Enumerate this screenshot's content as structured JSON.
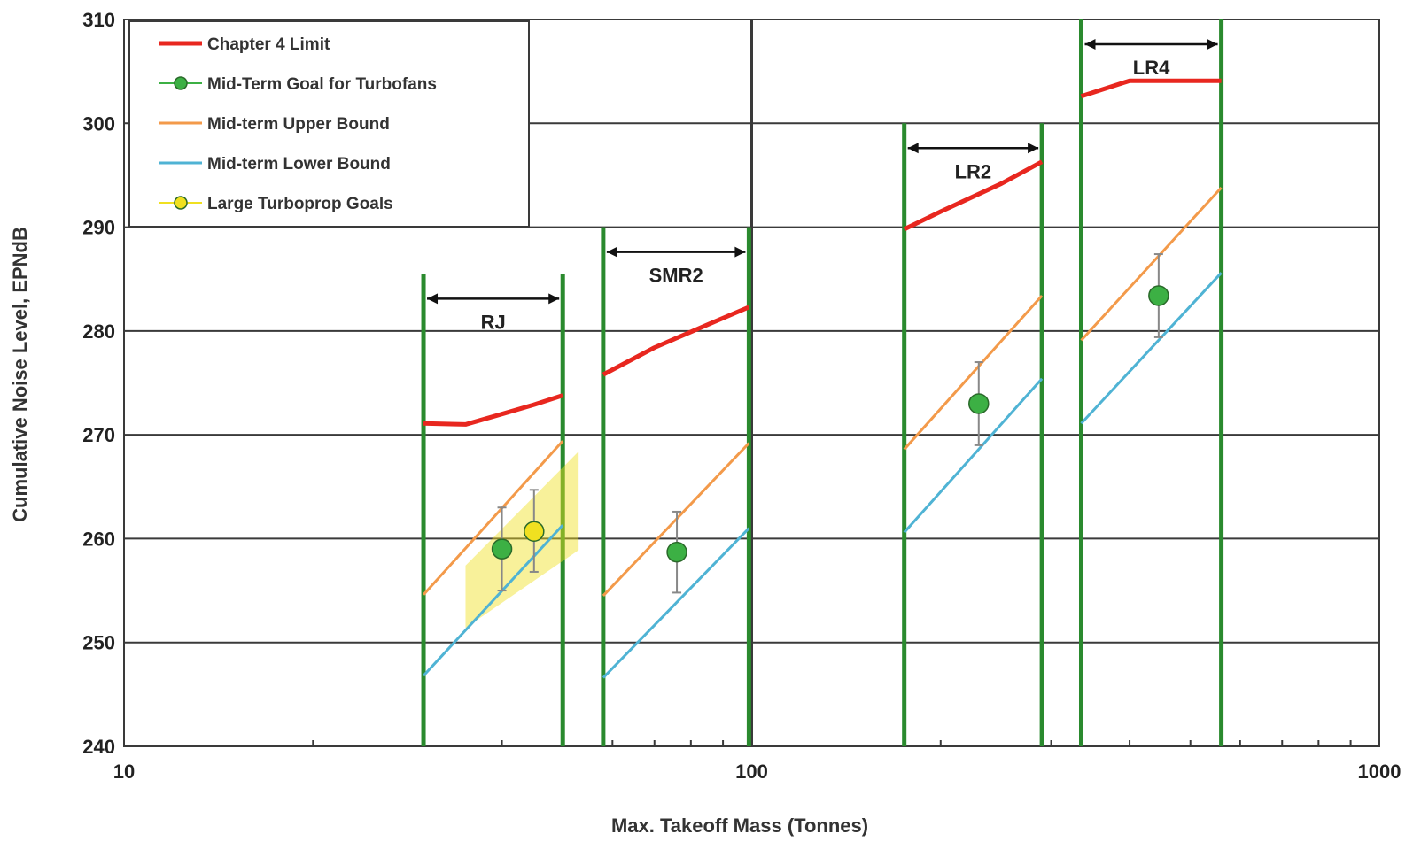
{
  "colors": {
    "chapter4": "#e8271f",
    "goal": "#3cb044",
    "upper": "#f39a4a",
    "lower": "#4fb3d4",
    "turboprop": "#f0e020",
    "band": "#2a8a2e",
    "errorbar": "#888888",
    "grid": "#3a3a3a"
  },
  "chart_data": {
    "type": "line",
    "xlabel": "Max. Takeoff Mass (Tonnes)",
    "ylabel": "Cumulative Noise Level, EPNdB",
    "xscale": "log",
    "xlim": [
      10,
      1000
    ],
    "ylim": [
      240,
      310
    ],
    "x_ticks": [
      "10",
      "100",
      "1000"
    ],
    "y_ticks": [
      "240",
      "250",
      "260",
      "270",
      "280",
      "290",
      "300",
      "310"
    ],
    "legend": {
      "position": "top-left",
      "entries": [
        "Chapter 4 Limit",
        "Mid-Term Goal for Turbofans",
        "Mid-term Upper Bound",
        "Mid-term Lower Bound",
        "Large Turboprop Goals"
      ]
    },
    "bands": [
      {
        "label": "RJ",
        "x_min": 30,
        "x_max": 50,
        "y_top": 285.5
      },
      {
        "label": "SMR2",
        "x_min": 58,
        "x_max": 99,
        "y_top": 290
      },
      {
        "label": "LR2",
        "x_min": 175,
        "x_max": 290,
        "y_top": 300
      },
      {
        "label": "LR4",
        "x_min": 335,
        "x_max": 560,
        "y_top": 310
      }
    ],
    "series": [
      {
        "name": "Chapter 4 Limit",
        "segments": [
          [
            [
              30,
              271.1
            ],
            [
              35,
              271.0
            ],
            [
              40,
              272.0
            ],
            [
              45,
              272.9
            ],
            [
              50,
              273.8
            ]
          ],
          [
            [
              58,
              275.8
            ],
            [
              70,
              278.4
            ],
            [
              85,
              280.6
            ],
            [
              99,
              282.3
            ]
          ],
          [
            [
              175,
              289.8
            ],
            [
              200,
              291.5
            ],
            [
              250,
              294.2
            ],
            [
              290,
              296.3
            ]
          ],
          [
            [
              335,
              302.6
            ],
            [
              400,
              304.1
            ],
            [
              500,
              304.1
            ],
            [
              560,
              304.1
            ]
          ]
        ]
      },
      {
        "name": "Mid-term Upper Bound",
        "segments": [
          [
            [
              30,
              254.6
            ],
            [
              50,
              269.4
            ]
          ],
          [
            [
              58,
              254.5
            ],
            [
              99,
              269.2
            ]
          ],
          [
            [
              175,
              268.6
            ],
            [
              290,
              283.4
            ]
          ],
          [
            [
              335,
              279.1
            ],
            [
              560,
              293.8
            ]
          ]
        ]
      },
      {
        "name": "Mid-term Lower Bound",
        "segments": [
          [
            [
              30,
              246.8
            ],
            [
              50,
              261.3
            ]
          ],
          [
            [
              58,
              246.6
            ],
            [
              99,
              261.0
            ]
          ],
          [
            [
              175,
              260.6
            ],
            [
              290,
              275.4
            ]
          ],
          [
            [
              335,
              271.1
            ],
            [
              560,
              285.6
            ]
          ]
        ]
      },
      {
        "name": "Mid-Term Goal for Turbofans",
        "points": [
          {
            "x": 40,
            "y": 259.0,
            "err_low": 255.0,
            "err_high": 263.0
          },
          {
            "x": 76,
            "y": 258.7,
            "err_low": 254.8,
            "err_high": 262.6
          },
          {
            "x": 230,
            "y": 273.0,
            "err_low": 269.0,
            "err_high": 277.0
          },
          {
            "x": 445,
            "y": 283.4,
            "err_low": 279.4,
            "err_high": 287.4
          }
        ]
      },
      {
        "name": "Large Turboprop Goals",
        "points": [
          {
            "x": 45,
            "y": 260.7,
            "err_low": 256.8,
            "err_high": 264.7
          }
        ],
        "shaded_region": [
          [
            35,
            257.4
          ],
          [
            53,
            268.4
          ],
          [
            53,
            258.9
          ],
          [
            35,
            251.4
          ]
        ]
      }
    ]
  }
}
